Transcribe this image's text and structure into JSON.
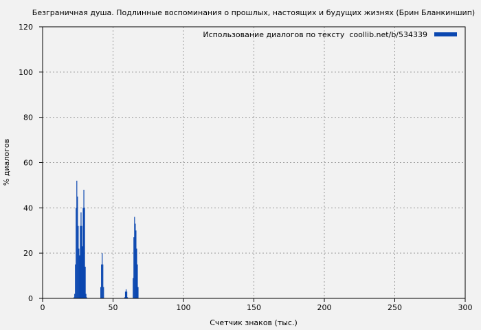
{
  "chart_data": {
    "type": "bar",
    "title": "Безграничная душа. Подлинные воспоминания о прошлых, настоящих и будущих жизнях (Брин Бланкиншип)",
    "xlabel": "Счетчик знаков (тыс.)",
    "ylabel": "% диалогов",
    "xlim": [
      0,
      300
    ],
    "ylim": [
      0,
      120
    ],
    "xticks": [
      0,
      50,
      100,
      150,
      200,
      250,
      300
    ],
    "yticks": [
      0,
      20,
      40,
      60,
      80,
      100,
      120
    ],
    "grid": true,
    "legend_position": "top-right",
    "bar_color": "#0a47b0",
    "series": [
      {
        "name": "Использование диалогов по тексту  coollib.net/b/534339",
        "x": [
          22.0,
          22.5,
          23.0,
          23.5,
          24.0,
          24.5,
          25.0,
          25.5,
          26.0,
          26.5,
          27.0,
          27.5,
          28.0,
          28.5,
          29.0,
          29.5,
          30.0,
          30.5,
          31.0,
          41.0,
          41.5,
          42.0,
          42.5,
          43.0,
          58.0,
          58.5,
          59.0,
          59.5,
          60.0,
          64.0,
          64.5,
          65.0,
          65.5,
          66.0,
          66.5,
          67.0,
          67.5
        ],
        "values": [
          0.5,
          2,
          15,
          40,
          52,
          45,
          32,
          22,
          19,
          32,
          38,
          32,
          23,
          40,
          48,
          40,
          14,
          2,
          0.5,
          5,
          15,
          20,
          15,
          5,
          0.5,
          3,
          4,
          3,
          0.5,
          9,
          27,
          36,
          33,
          30,
          22,
          15,
          5
        ]
      }
    ]
  }
}
